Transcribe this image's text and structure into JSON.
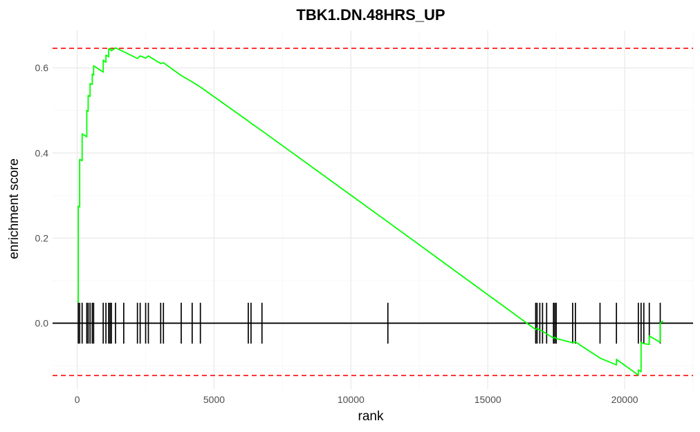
{
  "chart_data": {
    "type": "line",
    "title": "TBK1.DN.48HRS_UP",
    "xlabel": "rank",
    "ylabel": "enrichment score",
    "xlim": [
      -900,
      22500
    ],
    "ylim": [
      -0.155,
      0.688
    ],
    "x_ticks": [
      0,
      5000,
      10000,
      15000,
      20000
    ],
    "x_tick_labels": [
      "0",
      "5000",
      "10000",
      "15000",
      "20000"
    ],
    "y_ticks": [
      0.0,
      0.2,
      0.4,
      0.6
    ],
    "y_tick_labels": [
      "0.0",
      "0.2",
      "0.4",
      "0.6"
    ],
    "grid": true,
    "legend": "none",
    "max_es_line": 0.646,
    "min_es_line": -0.123,
    "zero_line": 0.0,
    "colors": {
      "curve": "#00ff00",
      "es_lines": "#ff0000",
      "ticks": "#000000",
      "zero_line": "#000000"
    },
    "hit_ranks": [
      40,
      90,
      180,
      350,
      400,
      470,
      550,
      600,
      950,
      1050,
      1150,
      1200,
      1250,
      1400,
      1700,
      2200,
      2300,
      2500,
      2600,
      3050,
      3150,
      3800,
      4200,
      4500,
      6250,
      6350,
      6750,
      11350,
      16750,
      16800,
      16900,
      17000,
      17150,
      17400,
      17450,
      17500,
      18100,
      18200,
      19100,
      19700,
      20500,
      20600,
      20700,
      20900,
      21300
    ],
    "series": [
      {
        "points": [
          [
            0,
            0.05
          ],
          [
            40,
            0.05
          ],
          [
            40,
            0.275
          ],
          [
            90,
            0.273
          ],
          [
            90,
            0.385
          ],
          [
            180,
            0.382
          ],
          [
            180,
            0.445
          ],
          [
            350,
            0.438
          ],
          [
            350,
            0.5
          ],
          [
            400,
            0.498
          ],
          [
            400,
            0.535
          ],
          [
            470,
            0.533
          ],
          [
            470,
            0.563
          ],
          [
            550,
            0.561
          ],
          [
            550,
            0.585
          ],
          [
            600,
            0.583
          ],
          [
            600,
            0.605
          ],
          [
            950,
            0.59
          ],
          [
            950,
            0.618
          ],
          [
            1050,
            0.613
          ],
          [
            1050,
            0.63
          ],
          [
            1150,
            0.626
          ],
          [
            1150,
            0.645
          ],
          [
            1200,
            0.643
          ],
          [
            1200,
            0.646
          ],
          [
            1250,
            0.64
          ],
          [
            1400,
            0.647
          ],
          [
            1700,
            0.638
          ],
          [
            2200,
            0.622
          ],
          [
            2300,
            0.628
          ],
          [
            2500,
            0.623
          ],
          [
            2600,
            0.628
          ],
          [
            3050,
            0.61
          ],
          [
            3150,
            0.612
          ],
          [
            3800,
            0.582
          ],
          [
            4200,
            0.567
          ],
          [
            4500,
            0.555
          ],
          [
            6250,
            0.475
          ],
          [
            6350,
            0.47
          ],
          [
            6750,
            0.452
          ],
          [
            11350,
            0.238
          ],
          [
            16750,
            -0.015
          ],
          [
            16800,
            -0.012
          ],
          [
            16900,
            -0.016
          ],
          [
            17000,
            -0.019
          ],
          [
            17150,
            -0.025
          ],
          [
            17400,
            -0.035
          ],
          [
            17450,
            -0.033
          ],
          [
            17500,
            -0.036
          ],
          [
            18100,
            -0.046
          ],
          [
            18200,
            -0.044
          ],
          [
            19100,
            -0.082
          ],
          [
            19700,
            -0.098
          ],
          [
            19700,
            -0.085
          ],
          [
            20500,
            -0.122
          ],
          [
            20500,
            -0.11
          ],
          [
            20600,
            -0.114
          ],
          [
            20600,
            -0.045
          ],
          [
            20700,
            -0.048
          ],
          [
            20900,
            -0.05
          ],
          [
            20900,
            -0.03
          ],
          [
            21300,
            -0.045
          ],
          [
            21300,
            0.0
          ],
          [
            21400,
            0.005
          ]
        ]
      }
    ]
  }
}
